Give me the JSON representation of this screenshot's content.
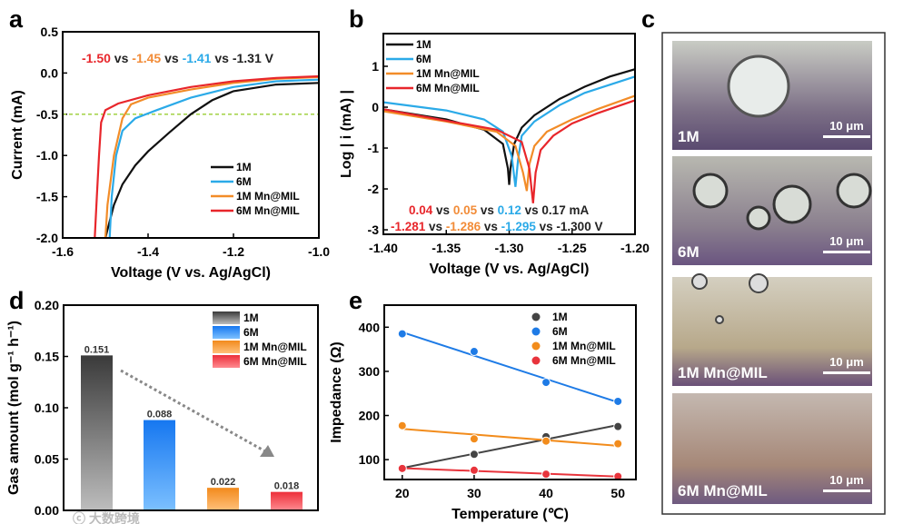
{
  "panel_letters": [
    "a",
    "b",
    "c",
    "d",
    "e"
  ],
  "chart_data": [
    {
      "panel": "a",
      "type": "line",
      "xlabel": "Voltage (V vs. Ag/AgCl)",
      "ylabel": "Current (mA)",
      "xlim": [
        -1.6,
        -1.0
      ],
      "ylim": [
        -2.0,
        0.5
      ],
      "xticks": [
        "-1.6",
        "-1.4",
        "-1.2",
        "-1.0"
      ],
      "yticks": [
        "0.5",
        "0.0",
        "-0.5",
        "-1.0",
        "-1.5",
        "-2.0"
      ],
      "reference_line": {
        "y": -0.5,
        "color": "#9ACD32",
        "style": "dashed"
      },
      "annotation": [
        {
          "text": "-1.50",
          "color": "#E8262B"
        },
        {
          "text": " vs ",
          "color": "#222222"
        },
        {
          "text": "-1.45",
          "color": "#F28C38"
        },
        {
          "text": " vs ",
          "color": "#222222"
        },
        {
          "text": "-1.41",
          "color": "#2BAAE8"
        },
        {
          "text": " vs -1.31 V",
          "color": "#222222"
        }
      ],
      "legend_position": "bottom-right",
      "series": [
        {
          "name": "1M",
          "color": "#111111",
          "points": [
            [
              -1.0,
              -0.12
            ],
            [
              -1.1,
              -0.14
            ],
            [
              -1.2,
              -0.22
            ],
            [
              -1.25,
              -0.33
            ],
            [
              -1.3,
              -0.5
            ],
            [
              -1.35,
              -0.72
            ],
            [
              -1.4,
              -0.95
            ],
            [
              -1.43,
              -1.12
            ],
            [
              -1.46,
              -1.35
            ],
            [
              -1.48,
              -1.6
            ],
            [
              -1.49,
              -1.8
            ],
            [
              -1.5,
              -2.0
            ]
          ]
        },
        {
          "name": "6M",
          "color": "#2BAAE8",
          "points": [
            [
              -1.0,
              -0.08
            ],
            [
              -1.1,
              -0.1
            ],
            [
              -1.2,
              -0.17
            ],
            [
              -1.3,
              -0.3
            ],
            [
              -1.38,
              -0.45
            ],
            [
              -1.43,
              -0.55
            ],
            [
              -1.46,
              -0.7
            ],
            [
              -1.475,
              -1.0
            ],
            [
              -1.485,
              -1.5
            ],
            [
              -1.49,
              -2.0
            ]
          ]
        },
        {
          "name": "1M Mn@MIL",
          "color": "#F28C28",
          "points": [
            [
              -1.0,
              -0.05
            ],
            [
              -1.1,
              -0.07
            ],
            [
              -1.2,
              -0.12
            ],
            [
              -1.3,
              -0.2
            ],
            [
              -1.4,
              -0.3
            ],
            [
              -1.44,
              -0.38
            ],
            [
              -1.46,
              -0.55
            ],
            [
              -1.48,
              -1.0
            ],
            [
              -1.495,
              -1.6
            ],
            [
              -1.5,
              -2.0
            ]
          ]
        },
        {
          "name": "6M Mn@MIL",
          "color": "#E8262B",
          "points": [
            [
              -1.0,
              -0.04
            ],
            [
              -1.1,
              -0.06
            ],
            [
              -1.2,
              -0.1
            ],
            [
              -1.3,
              -0.17
            ],
            [
              -1.4,
              -0.27
            ],
            [
              -1.47,
              -0.37
            ],
            [
              -1.5,
              -0.45
            ],
            [
              -1.51,
              -0.6
            ],
            [
              -1.515,
              -1.0
            ],
            [
              -1.52,
              -1.5
            ],
            [
              -1.525,
              -2.0
            ]
          ]
        }
      ]
    },
    {
      "panel": "b",
      "type": "line",
      "xlabel": "Voltage (V vs. Ag/AgCl)",
      "ylabel": "Log | i (mA) |",
      "xlim": [
        -1.4,
        -1.2
      ],
      "ylim": [
        -3.11,
        1.8
      ],
      "xticks": [
        "-1.40",
        "-1.35",
        "-1.30",
        "-1.25",
        "-1.20"
      ],
      "yticks": [
        "1",
        "0",
        "-1",
        "-2",
        "-3"
      ],
      "annotation_lines": [
        [
          {
            "text": "0.04",
            "color": "#E8262B"
          },
          {
            "text": " vs ",
            "color": "#222222"
          },
          {
            "text": "0.05",
            "color": "#F28C38"
          },
          {
            "text": " vs ",
            "color": "#222222"
          },
          {
            "text": "0.12",
            "color": "#2BAAE8"
          },
          {
            "text": " vs 0.17 mA",
            "color": "#222222"
          }
        ],
        [
          {
            "text": "-1.281",
            "color": "#E8262B"
          },
          {
            "text": " vs ",
            "color": "#222222"
          },
          {
            "text": "-1.286",
            "color": "#F28C38"
          },
          {
            "text": " vs ",
            "color": "#222222"
          },
          {
            "text": "-1.295",
            "color": "#2BAAE8"
          },
          {
            "text": " vs -1.300 V",
            "color": "#222222"
          }
        ]
      ],
      "legend_position": "top-left",
      "series": [
        {
          "name": "1M",
          "color": "#111111",
          "points": [
            [
              -1.4,
              -0.05
            ],
            [
              -1.35,
              -0.3
            ],
            [
              -1.32,
              -0.55
            ],
            [
              -1.305,
              -0.9
            ],
            [
              -1.301,
              -1.5
            ],
            [
              -1.3,
              -1.9
            ],
            [
              -1.299,
              -1.5
            ],
            [
              -1.296,
              -0.9
            ],
            [
              -1.29,
              -0.5
            ],
            [
              -1.28,
              -0.2
            ],
            [
              -1.26,
              0.2
            ],
            [
              -1.24,
              0.5
            ],
            [
              -1.22,
              0.75
            ],
            [
              -1.2,
              0.93
            ]
          ]
        },
        {
          "name": "6M",
          "color": "#2BAAE8",
          "points": [
            [
              -1.4,
              0.12
            ],
            [
              -1.35,
              -0.08
            ],
            [
              -1.32,
              -0.3
            ],
            [
              -1.305,
              -0.6
            ],
            [
              -1.298,
              -1.2
            ],
            [
              -1.295,
              -1.95
            ],
            [
              -1.293,
              -1.3
            ],
            [
              -1.29,
              -0.7
            ],
            [
              -1.28,
              -0.35
            ],
            [
              -1.26,
              0.05
            ],
            [
              -1.24,
              0.35
            ],
            [
              -1.22,
              0.55
            ],
            [
              -1.2,
              0.75
            ]
          ]
        },
        {
          "name": "1M Mn@MIL",
          "color": "#F28C28",
          "points": [
            [
              -1.4,
              -0.1
            ],
            [
              -1.35,
              -0.35
            ],
            [
              -1.31,
              -0.6
            ],
            [
              -1.295,
              -0.95
            ],
            [
              -1.289,
              -1.6
            ],
            [
              -1.286,
              -2.05
            ],
            [
              -1.284,
              -1.4
            ],
            [
              -1.28,
              -0.95
            ],
            [
              -1.27,
              -0.6
            ],
            [
              -1.25,
              -0.3
            ],
            [
              -1.23,
              -0.05
            ],
            [
              -1.2,
              0.28
            ]
          ]
        },
        {
          "name": "6M Mn@MIL",
          "color": "#E8262B",
          "points": [
            [
              -1.4,
              -0.05
            ],
            [
              -1.35,
              -0.33
            ],
            [
              -1.31,
              -0.55
            ],
            [
              -1.29,
              -0.85
            ],
            [
              -1.284,
              -1.5
            ],
            [
              -1.281,
              -2.35
            ],
            [
              -1.279,
              -1.6
            ],
            [
              -1.275,
              -1.05
            ],
            [
              -1.265,
              -0.7
            ],
            [
              -1.25,
              -0.4
            ],
            [
              -1.23,
              -0.15
            ],
            [
              -1.2,
              0.17
            ]
          ]
        }
      ]
    },
    {
      "panel": "d",
      "type": "bar",
      "ylabel": "Gas amount (mol g⁻¹ h⁻¹)",
      "ylim": [
        0,
        0.2
      ],
      "yticks": [
        "0.00",
        "0.05",
        "0.10",
        "0.15",
        "0.20"
      ],
      "categories": [
        "1M",
        "6M",
        "1M Mn@MIL",
        "6M Mn@MIL"
      ],
      "values": [
        0.151,
        0.088,
        0.022,
        0.018
      ],
      "value_labels": [
        "0.151",
        "0.088",
        "0.022",
        "0.018"
      ],
      "colors": [
        [
          "#3a3a3a",
          "#bdbdbd"
        ],
        [
          "#1677f0",
          "#7cc0ff"
        ],
        [
          "#f28a1c",
          "#ffc07a"
        ],
        [
          "#ec2f3a",
          "#ff8a90"
        ]
      ],
      "trend_arrow": "decreasing",
      "legend_position": "top-right"
    },
    {
      "panel": "e",
      "type": "scatter",
      "xlabel": "Temperature (℃)",
      "ylabel": "Impedance (Ω)",
      "xlim": [
        17.5,
        52.5
      ],
      "ylim": [
        55,
        450
      ],
      "xticks": [
        "20",
        "30",
        "40",
        "50"
      ],
      "yticks": [
        "100",
        "200",
        "300",
        "400"
      ],
      "fit": "linear",
      "legend_position": "top-right",
      "x": [
        20,
        30,
        40,
        50
      ],
      "series": [
        {
          "name": "1M",
          "color": "#444444",
          "values": [
            80,
            112,
            152,
            175
          ]
        },
        {
          "name": "6M",
          "color": "#1E7BE6",
          "values": [
            385,
            345,
            275,
            232
          ]
        },
        {
          "name": "1M Mn@MIL",
          "color": "#F28C1C",
          "values": [
            177,
            147,
            142,
            136
          ]
        },
        {
          "name": "6M Mn@MIL",
          "color": "#E8343C",
          "values": [
            80,
            76,
            67,
            62
          ]
        }
      ]
    }
  ],
  "panel_c": {
    "images": [
      {
        "label": "1M",
        "scale_bar": "10 μm"
      },
      {
        "label": "6M",
        "scale_bar": "10 μm"
      },
      {
        "label": "1M Mn@MIL",
        "scale_bar": "10 μm"
      },
      {
        "label": "6M Mn@MIL",
        "scale_bar": "10 μm"
      }
    ]
  },
  "watermark": "大数跨境"
}
